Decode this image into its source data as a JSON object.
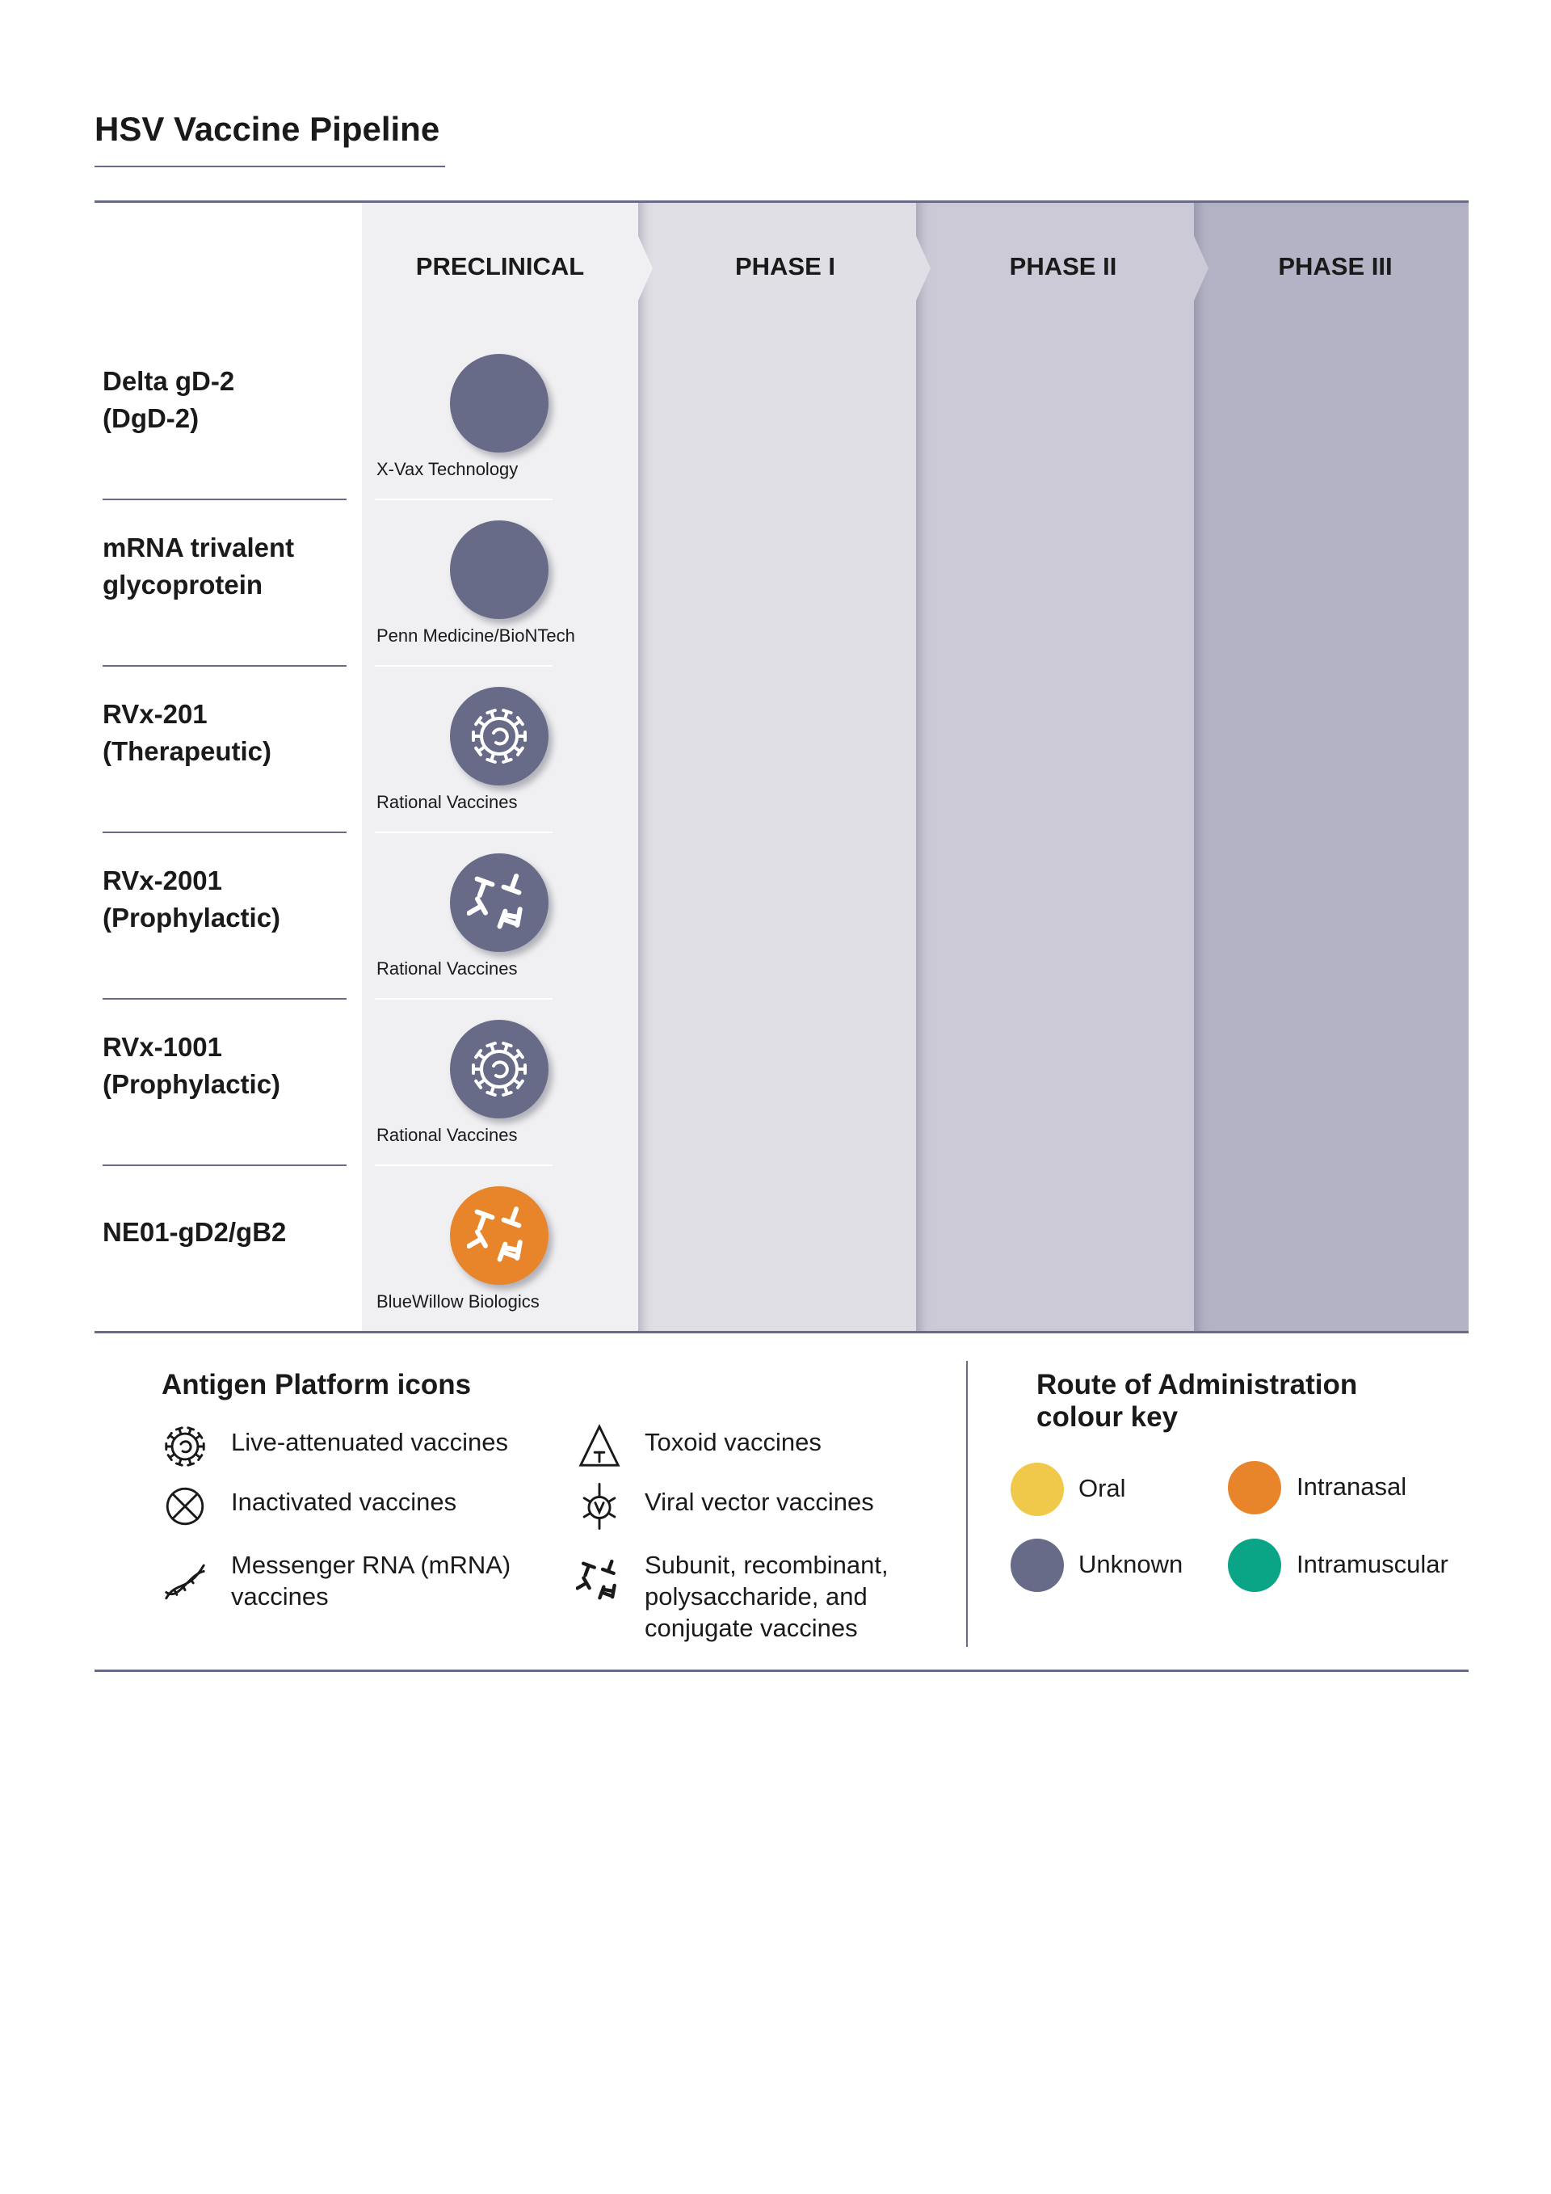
{
  "title": "HSV Vaccine Pipeline",
  "phases": [
    "PRECLINICAL",
    "PHASE I",
    "PHASE II",
    "PHASE III"
  ],
  "phase_colors": [
    "#f0f0f2",
    "#e0dfe6",
    "#cccad7",
    "#b4b2c5"
  ],
  "candidates": [
    {
      "name_line1": "Delta gD-2",
      "name_line2": "(DgD-2)",
      "company": "X-Vax Technology",
      "phase": "PRECLINICAL",
      "route": "Unknown",
      "platform_icon": "none"
    },
    {
      "name_line1": "mRNA trivalent",
      "name_line2": "glycoprotein",
      "company": "Penn Medicine/BioNTech",
      "phase": "PRECLINICAL",
      "route": "Unknown",
      "platform_icon": "none"
    },
    {
      "name_line1": "RVx-201",
      "name_line2": "(Therapeutic)",
      "company": "Rational Vaccines",
      "phase": "PRECLINICAL",
      "route": "Unknown",
      "platform_icon": "live-attenuated-icon"
    },
    {
      "name_line1": "RVx-2001",
      "name_line2": "(Prophylactic)",
      "company": "Rational Vaccines",
      "phase": "PRECLINICAL",
      "route": "Unknown",
      "platform_icon": "subunit-icon"
    },
    {
      "name_line1": "RVx-1001",
      "name_line2": "(Prophylactic)",
      "company": "Rational Vaccines",
      "phase": "PRECLINICAL",
      "route": "Unknown",
      "platform_icon": "live-attenuated-icon"
    },
    {
      "name_line1": "NE01-gD2/gB2",
      "name_line2": "",
      "company": "BlueWillow Biologics",
      "phase": "PRECLINICAL",
      "route": "Intranasal",
      "platform_icon": "subunit-icon"
    }
  ],
  "legend": {
    "title": "Antigen Platform icons",
    "items": [
      {
        "icon": "live-attenuated-icon",
        "label": "Live-attenuated vaccines"
      },
      {
        "icon": "inactivated-icon",
        "label": "Inactivated vaccines"
      },
      {
        "icon": "mrna-icon",
        "label": "Messenger RNA (mRNA) vaccines"
      },
      {
        "icon": "toxoid-icon",
        "label": "Toxoid vaccines"
      },
      {
        "icon": "viral-vector-icon",
        "label": "Viral vector vaccines"
      },
      {
        "icon": "subunit-icon",
        "label": "Subunit, recombinant, polysaccharide, and conjugate vaccines"
      }
    ]
  },
  "route_key": {
    "title": "Route of Administration colour key",
    "items": [
      {
        "label": "Oral",
        "color": "#f0c94a"
      },
      {
        "label": "Intranasal",
        "color": "#e8852a"
      },
      {
        "label": "Unknown",
        "color": "#676b88"
      },
      {
        "label": "Intramuscular",
        "color": "#0aa587"
      }
    ]
  }
}
